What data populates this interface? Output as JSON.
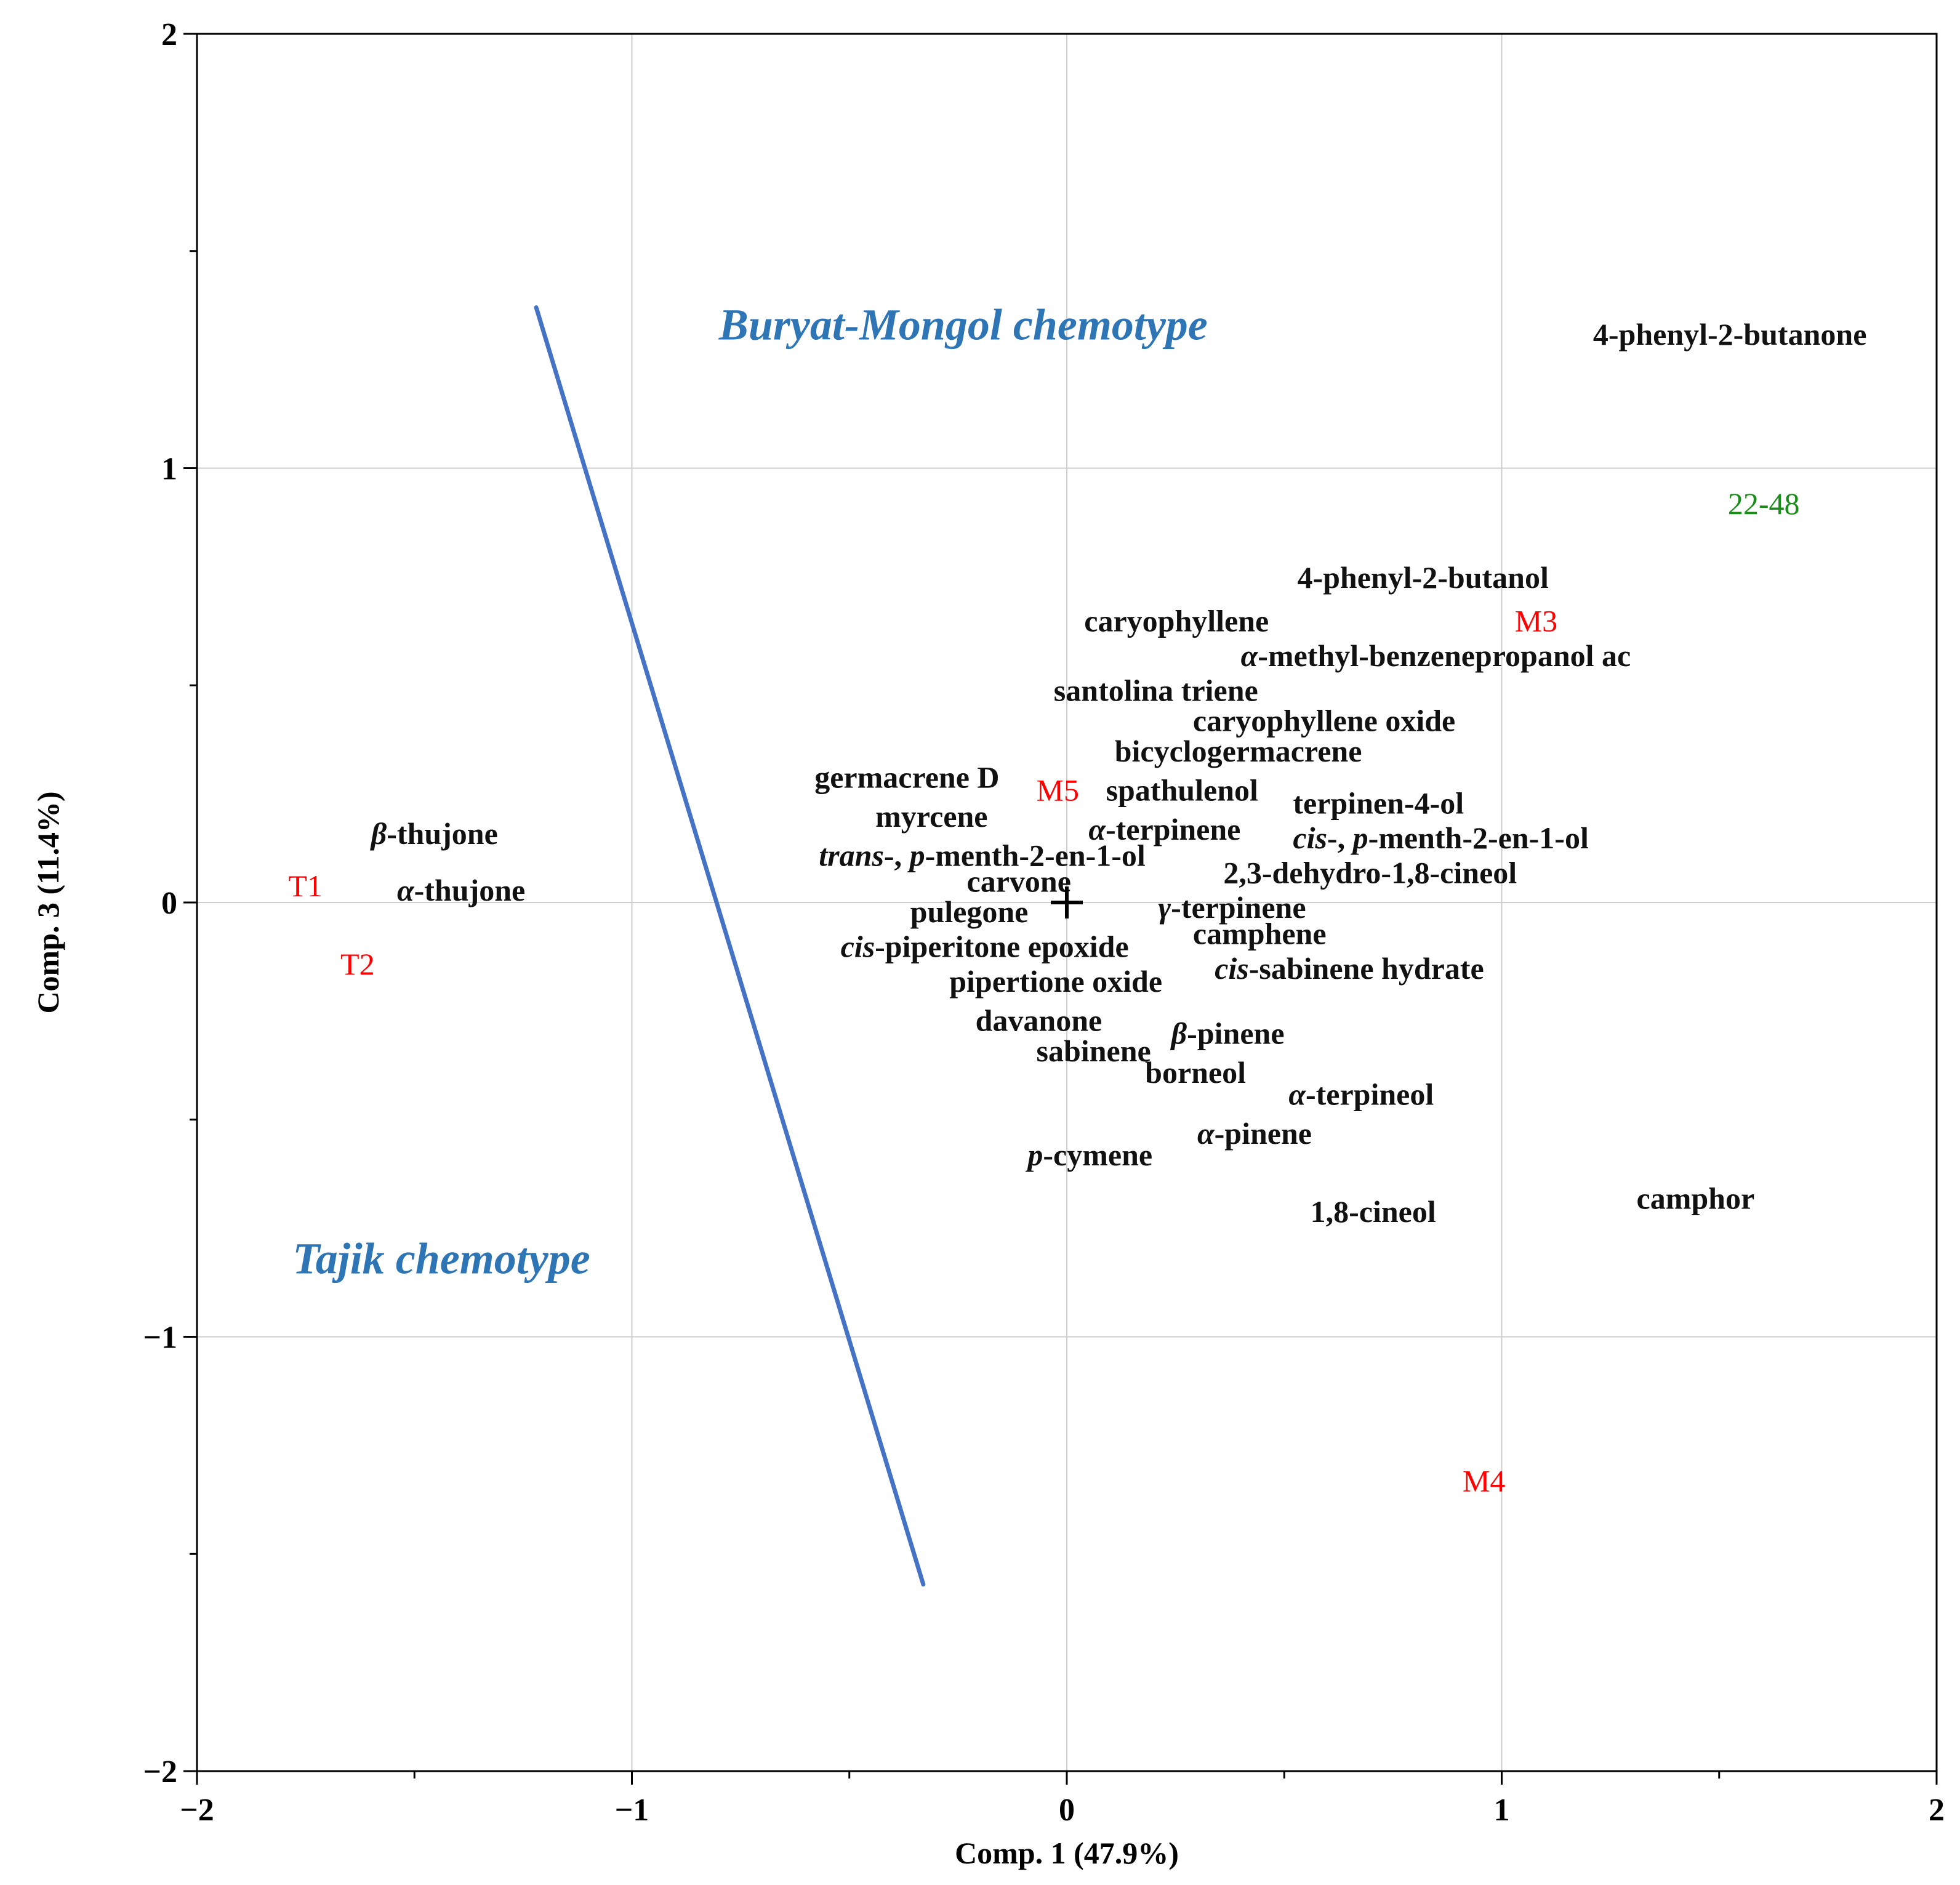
{
  "chart_data": {
    "type": "scatter",
    "xlabel": "Comp. 1 (47.9%)",
    "ylabel": "Comp. 3 (11.4%)",
    "xlim": [
      -2,
      2
    ],
    "ylim": [
      -2,
      2
    ],
    "xticks": [
      -2,
      -1,
      0,
      1,
      2
    ],
    "yticks": [
      -2,
      -1,
      0,
      1,
      2
    ],
    "xtick_labels": [
      "−2",
      "−1",
      "0",
      "1",
      "2"
    ],
    "ytick_labels": [
      "−2",
      "−1",
      "0",
      "1",
      "2"
    ],
    "grid": true,
    "origin_marker": "+",
    "colors": {
      "variable": "#111111",
      "observation": "#ff0000",
      "highlight": "#1a8c1a",
      "group": "#2e75b6",
      "separator": "#4472c4",
      "grid": "#cccccc"
    },
    "separator_line": {
      "from": [
        -1.22,
        1.37
      ],
      "to": [
        -0.33,
        -1.57
      ]
    },
    "groups": [
      {
        "name": "Buryat-Mongol chemotype",
        "x": -0.8,
        "y": 1.33
      },
      {
        "name": "Tajik chemotype",
        "x": -1.78,
        "y": -0.82
      }
    ],
    "variables": [
      {
        "label": "4-phenyl-2-butanone",
        "x": 1.21,
        "y": 1.31
      },
      {
        "label": "4-phenyl-2-butanol",
        "x": 0.53,
        "y": 0.75
      },
      {
        "label": "caryophyllene",
        "x": 0.04,
        "y": 0.65
      },
      {
        "prefix": "α",
        "label": "-methyl-benzenepropanol ac",
        "x": 0.4,
        "y": 0.57
      },
      {
        "label": "santolina triene",
        "x": -0.03,
        "y": 0.49
      },
      {
        "label": "caryophyllene oxide",
        "x": 0.29,
        "y": 0.42
      },
      {
        "label": "bicyclogermacrene",
        "x": 0.11,
        "y": 0.35
      },
      {
        "label": "germacrene D",
        "x": -0.58,
        "y": 0.29
      },
      {
        "label": "spathulenol",
        "x": 0.09,
        "y": 0.26
      },
      {
        "label": "terpinen-4-ol",
        "x": 0.52,
        "y": 0.23
      },
      {
        "label": "myrcene",
        "x": -0.44,
        "y": 0.2
      },
      {
        "prefix": "α",
        "label": "-terpinene",
        "x": 0.05,
        "y": 0.17
      },
      {
        "prefix": "cis",
        "label": "-, ",
        "prefix2": "p",
        "label2": "-menth-2-en-1-ol",
        "x": 0.52,
        "y": 0.15
      },
      {
        "prefix": "β",
        "label": "-thujone",
        "x": -1.6,
        "y": 0.16
      },
      {
        "prefix": "trans",
        "label": "-, ",
        "prefix2": "p",
        "label2": "-menth-2-en-1-ol",
        "x": -0.57,
        "y": 0.11
      },
      {
        "label": "2,3-dehydro-1,8-cineol",
        "x": 0.36,
        "y": 0.07
      },
      {
        "label": "carvone",
        "x": -0.23,
        "y": 0.05
      },
      {
        "prefix": "α",
        "label": "-thujone",
        "x": -1.54,
        "y": 0.03
      },
      {
        "prefix": "γ",
        "label": "-terpinene",
        "x": 0.21,
        "y": -0.01
      },
      {
        "label": "pulegone",
        "x": -0.36,
        "y": -0.02
      },
      {
        "label": "camphene",
        "x": 0.29,
        "y": -0.07
      },
      {
        "prefix": "cis",
        "label": "-piperitone epoxide",
        "x": -0.52,
        "y": -0.1
      },
      {
        "prefix": "cis",
        "label": "-sabinene hydrate",
        "x": 0.34,
        "y": -0.15
      },
      {
        "label": "pipertione oxide",
        "x": -0.27,
        "y": -0.18
      },
      {
        "label": "davanone",
        "x": -0.21,
        "y": -0.27
      },
      {
        "label": "sabinene",
        "x": -0.07,
        "y": -0.34
      },
      {
        "prefix": "β",
        "label": "-pinene",
        "x": 0.24,
        "y": -0.3
      },
      {
        "label": "borneol",
        "x": 0.18,
        "y": -0.39
      },
      {
        "prefix": "α",
        "label": "-terpineol",
        "x": 0.51,
        "y": -0.44
      },
      {
        "prefix": "α",
        "label": "-pinene",
        "x": 0.3,
        "y": -0.53
      },
      {
        "prefix": "p",
        "label": "-cymene",
        "x": -0.09,
        "y": -0.58
      },
      {
        "label": "1,8-cineol",
        "x": 0.56,
        "y": -0.71
      },
      {
        "label": "camphor",
        "x": 1.31,
        "y": -0.68
      }
    ],
    "observations": [
      {
        "label": "T1",
        "x": -1.79,
        "y": 0.04,
        "color": "#ff0000"
      },
      {
        "label": "T2",
        "x": -1.67,
        "y": -0.14,
        "color": "#ff0000"
      },
      {
        "label": "M5",
        "x": -0.07,
        "y": 0.26,
        "color": "#ff0000"
      },
      {
        "label": "M3",
        "x": 1.03,
        "y": 0.65,
        "color": "#ff0000"
      },
      {
        "label": "M4",
        "x": 0.91,
        "y": -1.33,
        "color": "#ff0000"
      },
      {
        "label": "22-48",
        "x": 1.52,
        "y": 0.92,
        "color": "#1a8c1a"
      }
    ]
  }
}
